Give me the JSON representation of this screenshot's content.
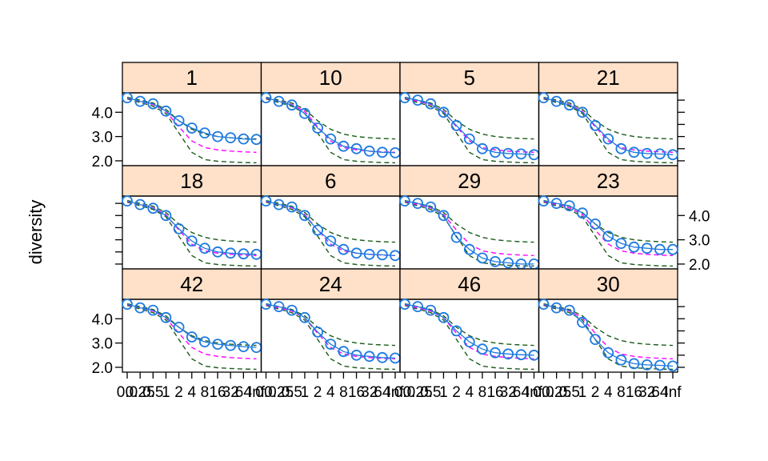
{
  "chart_data": {
    "type": "line",
    "ylabel": "diversity",
    "ylim": [
      1.8,
      4.8
    ],
    "yticks": [
      2.0,
      3.0,
      4.0
    ],
    "ytick_labels": [
      "2.0",
      "3.0",
      "4.0"
    ],
    "x_tick_labels": [
      "0.0",
      "0.25",
      "0.5",
      "1",
      "2",
      "4",
      "8",
      "16",
      "32",
      "64",
      "Inf"
    ],
    "x_positions": [
      0,
      1,
      2,
      3,
      4,
      5,
      6,
      7,
      8,
      9,
      10
    ],
    "colors": {
      "observed": "#1f7be0",
      "mean": "#ff00ff",
      "band": "#1a5c1a",
      "strip": "#FFE0C8"
    },
    "ref_lower": [
      4.55,
      4.4,
      4.25,
      3.95,
      3.15,
      2.35,
      2.05,
      1.98,
      1.95,
      1.93,
      1.92
    ],
    "ref_upper": [
      4.62,
      4.5,
      4.38,
      4.12,
      3.65,
      3.3,
      3.1,
      3.0,
      2.95,
      2.92,
      2.9
    ],
    "ref_mean": [
      4.58,
      4.45,
      4.32,
      4.04,
      3.4,
      2.82,
      2.55,
      2.45,
      2.4,
      2.37,
      2.35
    ],
    "panels": [
      {
        "label": "1",
        "values": [
          4.6,
          4.45,
          4.35,
          4.05,
          3.65,
          3.35,
          3.15,
          3.0,
          2.95,
          2.9,
          2.88
        ]
      },
      {
        "label": "10",
        "values": [
          4.6,
          4.45,
          4.3,
          3.95,
          3.35,
          2.9,
          2.6,
          2.5,
          2.4,
          2.35,
          2.33
        ]
      },
      {
        "label": "5",
        "values": [
          4.6,
          4.5,
          4.35,
          4.0,
          3.45,
          2.9,
          2.5,
          2.35,
          2.3,
          2.28,
          2.25
        ]
      },
      {
        "label": "21",
        "values": [
          4.6,
          4.45,
          4.3,
          4.0,
          3.45,
          2.9,
          2.5,
          2.35,
          2.3,
          2.28,
          2.25
        ]
      },
      {
        "label": "18",
        "values": [
          4.6,
          4.45,
          4.3,
          4.0,
          3.45,
          2.95,
          2.65,
          2.5,
          2.45,
          2.42,
          2.4
        ]
      },
      {
        "label": "6",
        "values": [
          4.6,
          4.45,
          4.35,
          4.0,
          3.4,
          2.95,
          2.6,
          2.45,
          2.4,
          2.38,
          2.35
        ]
      },
      {
        "label": "29",
        "values": [
          4.6,
          4.5,
          4.35,
          4.0,
          3.1,
          2.6,
          2.25,
          2.1,
          2.05,
          2.0,
          2.0
        ]
      },
      {
        "label": "23",
        "values": [
          4.6,
          4.5,
          4.4,
          4.1,
          3.65,
          3.15,
          2.85,
          2.7,
          2.65,
          2.6,
          2.6
        ]
      },
      {
        "label": "42",
        "values": [
          4.6,
          4.45,
          4.35,
          4.05,
          3.65,
          3.25,
          3.05,
          2.95,
          2.9,
          2.85,
          2.82
        ]
      },
      {
        "label": "24",
        "values": [
          4.6,
          4.5,
          4.35,
          4.05,
          3.45,
          2.95,
          2.65,
          2.5,
          2.45,
          2.4,
          2.38
        ]
      },
      {
        "label": "46",
        "values": [
          4.6,
          4.5,
          4.35,
          4.05,
          3.5,
          3.05,
          2.75,
          2.6,
          2.55,
          2.52,
          2.5
        ]
      },
      {
        "label": "30",
        "values": [
          4.6,
          4.45,
          4.35,
          3.85,
          3.15,
          2.6,
          2.3,
          2.15,
          2.1,
          2.08,
          2.05
        ]
      }
    ]
  }
}
